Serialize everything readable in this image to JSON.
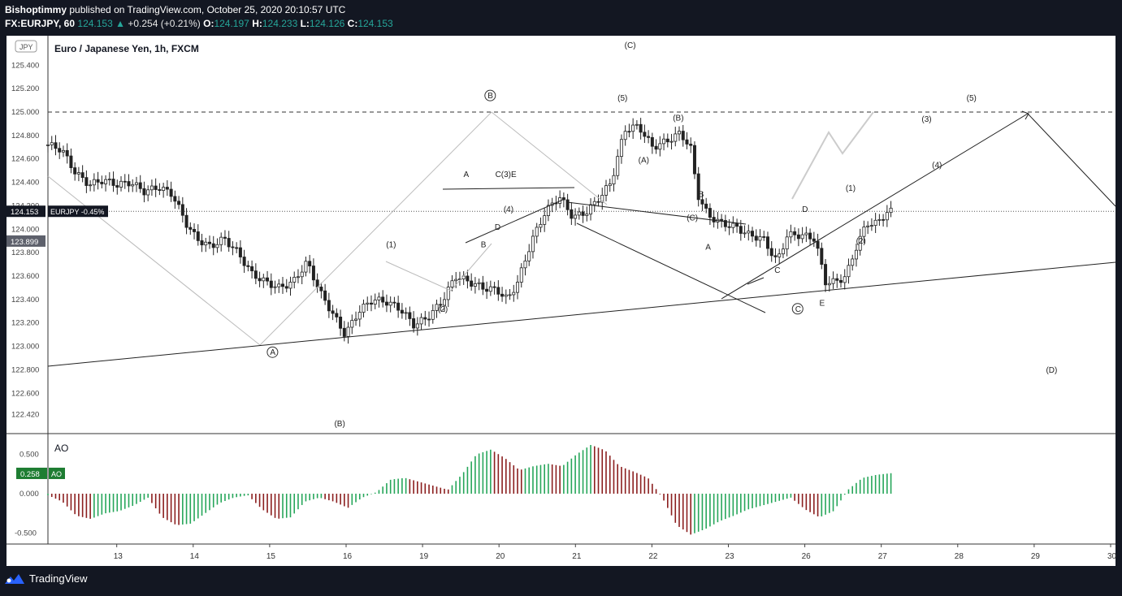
{
  "header": {
    "author": "Bishoptimmy",
    "published": "published on TradingView.com, October 25, 2020 20:10:57 UTC",
    "symbol": "FX:EURJPY, 60",
    "price": "124.153",
    "change": "+0.254 (+0.21%)",
    "open_label": "O:",
    "open": "124.197",
    "high_label": "H:",
    "high": "124.233",
    "low_label": "L:",
    "low": "124.126",
    "close_label": "C:",
    "close": "124.153"
  },
  "footer": {
    "brand": "TradingView",
    "logo_icon": "tradingview-logo-icon"
  },
  "colors": {
    "background": "#131722",
    "panel": "#ffffff",
    "up": "#26a69a",
    "down": "#ef5350",
    "ao_up": "#26a65a",
    "ao_down": "#8b1e1e"
  },
  "chart_data": [
    {
      "type": "candlestick",
      "title": "Euro / Japanese Yen, 1h, FXCM",
      "currency_label": "JPY",
      "ylim": [
        122.3,
        125.5
      ],
      "y_ticks": [
        "125.400",
        "125.200",
        "125.000",
        "124.800",
        "124.600",
        "124.400",
        "124.200",
        "124.000",
        "123.800",
        "123.600",
        "123.400",
        "123.200",
        "123.000",
        "122.800",
        "122.600",
        "122.420"
      ],
      "x_ticks": [
        "13",
        "14",
        "15",
        "16",
        "19",
        "20",
        "21",
        "22",
        "23",
        "26",
        "27",
        "28",
        "29",
        "30"
      ],
      "last_price_label": "124.153",
      "symbol_tag": "EURJPY -0.45%",
      "secondary_price_label": "123.899",
      "close_path": [
        [
          0,
          124.72
        ],
        [
          0.4,
          124.68
        ],
        [
          0.8,
          124.48
        ],
        [
          1.2,
          124.38
        ],
        [
          1.6,
          124.42
        ],
        [
          2.0,
          124.38
        ],
        [
          2.4,
          124.4
        ],
        [
          2.8,
          124.32
        ],
        [
          3.2,
          124.36
        ],
        [
          3.6,
          124.3
        ],
        [
          4.0,
          124.05
        ],
        [
          4.3,
          123.92
        ],
        [
          4.7,
          123.85
        ],
        [
          5.1,
          123.92
        ],
        [
          5.5,
          123.8
        ],
        [
          5.9,
          123.62
        ],
        [
          6.3,
          123.55
        ],
        [
          6.7,
          123.5
        ],
        [
          7.1,
          123.55
        ],
        [
          7.5,
          123.72
        ],
        [
          7.9,
          123.45
        ],
        [
          8.3,
          123.25
        ],
        [
          8.6,
          123.1
        ],
        [
          9.0,
          123.3
        ],
        [
          9.4,
          123.4
        ],
        [
          9.8,
          123.38
        ],
        [
          10.2,
          123.32
        ],
        [
          10.6,
          123.18
        ],
        [
          11.0,
          123.25
        ],
        [
          11.4,
          123.38
        ],
        [
          11.8,
          123.6
        ],
        [
          12.2,
          123.55
        ],
        [
          12.6,
          123.5
        ],
        [
          13.0,
          123.48
        ],
        [
          13.3,
          123.4
        ],
        [
          13.6,
          123.55
        ],
        [
          14.0,
          123.9
        ],
        [
          14.4,
          124.15
        ],
        [
          14.8,
          124.28
        ],
        [
          15.2,
          124.1
        ],
        [
          15.6,
          124.15
        ],
        [
          16.0,
          124.28
        ],
        [
          16.3,
          124.4
        ],
        [
          16.7,
          124.85
        ],
        [
          17.1,
          124.88
        ],
        [
          17.5,
          124.7
        ],
        [
          17.9,
          124.75
        ],
        [
          18.3,
          124.82
        ],
        [
          18.6,
          124.7
        ],
        [
          18.8,
          124.3
        ],
        [
          19.1,
          124.12
        ],
        [
          19.5,
          124.05
        ],
        [
          19.9,
          124.02
        ],
        [
          20.3,
          123.95
        ],
        [
          20.7,
          123.92
        ],
        [
          21.1,
          123.72
        ],
        [
          21.4,
          123.95
        ],
        [
          21.8,
          123.95
        ],
        [
          22.2,
          123.92
        ],
        [
          22.5,
          123.55
        ],
        [
          22.8,
          123.55
        ],
        [
          23.1,
          123.6
        ],
        [
          23.4,
          123.85
        ],
        [
          23.7,
          124.05
        ],
        [
          24.0,
          124.05
        ],
        [
          24.3,
          124.15
        ],
        [
          24.4,
          124.15
        ]
      ],
      "annotations": [
        {
          "text": "A",
          "circled": true,
          "x": 6.5,
          "y": 122.93
        },
        {
          "text": "B",
          "circled": true,
          "x": 12.8,
          "y": 125.12
        },
        {
          "text": "C",
          "circled": true,
          "x": 21.7,
          "y": 123.3
        },
        {
          "text": "(5)",
          "x": 16.7,
          "y": 125.1
        },
        {
          "text": "(B)",
          "x": 18.3,
          "y": 124.93
        },
        {
          "text": "(A)",
          "x": 17.3,
          "y": 124.57
        },
        {
          "text": "(C)",
          "x": 18.7,
          "y": 124.08
        },
        {
          "text": "(1)",
          "x": 10.0,
          "y": 123.85
        },
        {
          "text": "(2)",
          "x": 11.5,
          "y": 123.3
        },
        {
          "text": "A",
          "x": 12.1,
          "y": 124.45
        },
        {
          "text": "B",
          "x": 12.6,
          "y": 123.85
        },
        {
          "text": "C(3)E",
          "x": 13.3,
          "y": 124.45
        },
        {
          "text": "(4)",
          "x": 13.4,
          "y": 124.15
        },
        {
          "text": "D",
          "x": 13.0,
          "y": 124.0
        },
        {
          "text": "B",
          "x": 18.9,
          "y": 124.28
        },
        {
          "text": "A",
          "x": 19.1,
          "y": 123.83
        },
        {
          "text": "C",
          "x": 21.1,
          "y": 123.63
        },
        {
          "text": "D",
          "x": 21.9,
          "y": 124.15
        },
        {
          "text": "E",
          "x": 22.4,
          "y": 123.35
        },
        {
          "text": "(1)",
          "x": 23.3,
          "y": 124.33
        },
        {
          "text": "(2)",
          "x": 23.6,
          "y": 123.88
        },
        {
          "text": "(3)",
          "x": 25.5,
          "y": 124.92
        },
        {
          "text": "(4)",
          "x": 25.8,
          "y": 124.53
        },
        {
          "text": "(5)",
          "x": 26.8,
          "y": 125.1
        },
        {
          "text": "(D)",
          "x": 29.1,
          "y": 122.78
        },
        {
          "text": "(B)",
          "x": 8.5,
          "y": 122.32
        },
        {
          "text": "(C)",
          "x": 16.9,
          "y": 125.55
        }
      ]
    },
    {
      "type": "bar",
      "title": "AO",
      "y_ticks": [
        "0.500",
        "0.000",
        "-0.500"
      ],
      "ylim": [
        -0.62,
        0.62
      ],
      "last_value_label": "0.258",
      "series_label": "AO",
      "path": [
        [
          0,
          -0.02
        ],
        [
          1,
          -0.1
        ],
        [
          2,
          -0.28
        ],
        [
          3,
          -0.32
        ],
        [
          4,
          -0.25
        ],
        [
          5,
          -0.22
        ],
        [
          6,
          -0.15
        ],
        [
          7,
          -0.05
        ],
        [
          8,
          -0.3
        ],
        [
          9,
          -0.4
        ],
        [
          10,
          -0.38
        ],
        [
          11,
          -0.25
        ],
        [
          12,
          -0.12
        ],
        [
          13,
          -0.05
        ],
        [
          14,
          -0.02
        ],
        [
          15,
          -0.2
        ],
        [
          16,
          -0.32
        ],
        [
          17,
          -0.3
        ],
        [
          18,
          -0.1
        ],
        [
          19,
          -0.05
        ],
        [
          20,
          -0.1
        ],
        [
          21,
          -0.18
        ],
        [
          22,
          -0.05
        ],
        [
          23,
          0.02
        ],
        [
          24,
          0.18
        ],
        [
          25,
          0.2
        ],
        [
          26,
          0.15
        ],
        [
          27,
          0.1
        ],
        [
          28,
          0.05
        ],
        [
          29,
          0.25
        ],
        [
          30,
          0.5
        ],
        [
          31,
          0.56
        ],
        [
          32,
          0.45
        ],
        [
          33,
          0.3
        ],
        [
          34,
          0.35
        ],
        [
          35,
          0.38
        ],
        [
          36,
          0.35
        ],
        [
          37,
          0.5
        ],
        [
          38,
          0.62
        ],
        [
          39,
          0.55
        ],
        [
          40,
          0.35
        ],
        [
          41,
          0.28
        ],
        [
          42,
          0.2
        ],
        [
          43,
          -0.05
        ],
        [
          44,
          -0.4
        ],
        [
          45,
          -0.52
        ],
        [
          46,
          -0.45
        ],
        [
          47,
          -0.35
        ],
        [
          48,
          -0.28
        ],
        [
          49,
          -0.2
        ],
        [
          50,
          -0.15
        ],
        [
          51,
          -0.1
        ],
        [
          52,
          -0.05
        ],
        [
          53,
          -0.2
        ],
        [
          54,
          -0.3
        ],
        [
          55,
          -0.22
        ],
        [
          56,
          0.05
        ],
        [
          57,
          0.2
        ],
        [
          58,
          0.24
        ],
        [
          59,
          0.26
        ]
      ]
    }
  ]
}
